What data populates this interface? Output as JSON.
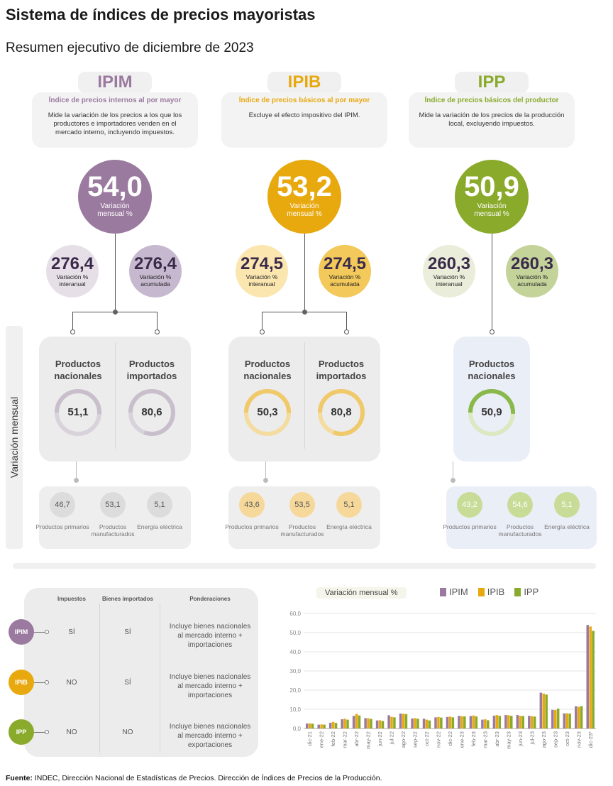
{
  "header": {
    "title": "Sistema de índices de precios mayoristas",
    "subtitle": "Resumen ejecutivo de diciembre de 2023"
  },
  "indices": [
    {
      "name": "IPIM",
      "full_name": "Índice de precios internos al por mayor",
      "description": "Mide la variación de los precios a los que los productores e importadores venden en el mercado interno, incluyendo impuestos.",
      "color": "#9b7aa0",
      "monthly_value": "54,0",
      "monthly_label": "Variación mensual %",
      "annual_value": "276,4",
      "annual_label": "Variación % interanual",
      "accumulated_value": "276,4",
      "accumulated_label": "Variación % acumulada",
      "products": [
        {
          "title": "Productos nacionales",
          "value": "51,1",
          "fraction": 0.511
        },
        {
          "title": "Productos importados",
          "value": "80,6",
          "fraction": 0.806
        }
      ],
      "breakdown": [
        {
          "value": "46,7",
          "label": "Productos primarios"
        },
        {
          "value": "53,1",
          "label": "Productos manufacturados"
        },
        {
          "value": "5,1",
          "label": "Energía eléctrica"
        }
      ]
    },
    {
      "name": "IPIB",
      "full_name": "Índice de precios básicos al por mayor",
      "description": "Excluye el efecto impositivo del IPIM.",
      "color": "#e8a90f",
      "monthly_value": "53,2",
      "monthly_label": "Variación mensual %",
      "annual_value": "274,5",
      "annual_label": "Variación % interanual",
      "accumulated_value": "274,5",
      "accumulated_label": "Variación % acumulada",
      "products": [
        {
          "title": "Productos nacionales",
          "value": "50,3",
          "fraction": 0.503
        },
        {
          "title": "Productos importados",
          "value": "80,8",
          "fraction": 0.808
        }
      ],
      "breakdown": [
        {
          "value": "43,6",
          "label": "Productos primarios"
        },
        {
          "value": "53,5",
          "label": "Productos manufacturados"
        },
        {
          "value": "5,1",
          "label": "Energía eléctrica"
        }
      ]
    },
    {
      "name": "IPP",
      "full_name": "Índice de precios básicos del productor",
      "description": "Mide la variación de los precios de la producción local, excluyendo impuestos.",
      "color": "#8aaa2c",
      "monthly_value": "50,9",
      "monthly_label": "Variación mensual %",
      "annual_value": "260,3",
      "annual_label": "Variación % interanual",
      "accumulated_value": "260,3",
      "accumulated_label": "Variación % acumulada",
      "products": [
        {
          "title": "Productos nacionales",
          "value": "50,9",
          "fraction": 0.509
        }
      ],
      "breakdown": [
        {
          "value": "43,2",
          "label": "Productos primarios"
        },
        {
          "value": "54,6",
          "label": "Productos manufacturados"
        },
        {
          "value": "5,1",
          "label": "Energía eléctrica"
        }
      ]
    }
  ],
  "side_label": "Variación mensual",
  "comparison_table": {
    "headers": [
      "Impuestos",
      "Bienes importados",
      "Ponderaciones"
    ],
    "rows": [
      {
        "index": "IPIM",
        "impuestos": "SÍ",
        "importados": "SÍ",
        "ponderaciones": "Incluye bienes nacionales al mercado interno + importaciones"
      },
      {
        "index": "IPIB",
        "impuestos": "NO",
        "importados": "SÍ",
        "ponderaciones": "Incluye bienes nacionales al mercado interno + importaciones"
      },
      {
        "index": "IPP",
        "impuestos": "NO",
        "importados": "NO",
        "ponderaciones": "Incluye bienes nacionales al mercado interno + exportaciones"
      }
    ]
  },
  "chart_data": {
    "type": "bar",
    "title": "Variación mensual %",
    "categories": [
      "dic-21",
      "ene-22",
      "feb-22",
      "mar-22",
      "abr-22",
      "may-22",
      "jun-22",
      "jul-22",
      "ago-22",
      "sep-22",
      "oct-22",
      "nov-22",
      "dic-22",
      "ene-23",
      "feb-23",
      "mar-23",
      "abr-23",
      "may-23",
      "jun-23",
      "jul-23",
      "ago-23",
      "sep-23",
      "oct-23",
      "nov-23",
      "dic-23*"
    ],
    "series": [
      {
        "name": "IPIM",
        "color": "#9b7aa0",
        "values": [
          2.6,
          2.0,
          3.0,
          4.8,
          6.6,
          5.4,
          4.2,
          6.9,
          7.8,
          5.2,
          5.1,
          5.8,
          6.0,
          6.6,
          6.5,
          4.6,
          6.7,
          7.0,
          7.0,
          6.6,
          18.7,
          9.7,
          7.9,
          11.6,
          54.0
        ]
      },
      {
        "name": "IPIB",
        "color": "#e8a90f",
        "values": [
          2.7,
          2.1,
          3.4,
          5.1,
          7.6,
          5.3,
          4.3,
          6.1,
          7.7,
          5.4,
          4.6,
          6.0,
          6.2,
          6.4,
          6.8,
          4.8,
          7.0,
          6.9,
          6.6,
          6.4,
          18.2,
          9.6,
          7.9,
          11.3,
          53.2
        ]
      },
      {
        "name": "IPP",
        "color": "#8aaa2c",
        "values": [
          2.5,
          2.0,
          2.9,
          4.6,
          6.8,
          5.0,
          3.9,
          5.8,
          7.5,
          5.1,
          4.2,
          5.7,
          5.8,
          6.3,
          6.3,
          4.3,
          6.6,
          6.6,
          6.5,
          6.2,
          17.7,
          10.4,
          7.8,
          11.7,
          50.9
        ]
      }
    ],
    "yticks": [
      "0,0",
      "10,0",
      "20,0",
      "30,0",
      "40,0",
      "50,0",
      "60,0"
    ],
    "ylim": [
      0,
      60
    ],
    "grid": true,
    "legend": "top"
  },
  "source": {
    "label": "Fuente:",
    "text": "INDEC, Dirección Nacional de Estadísticas de Precios. Dirección de Índices de Precios de la Producción."
  }
}
